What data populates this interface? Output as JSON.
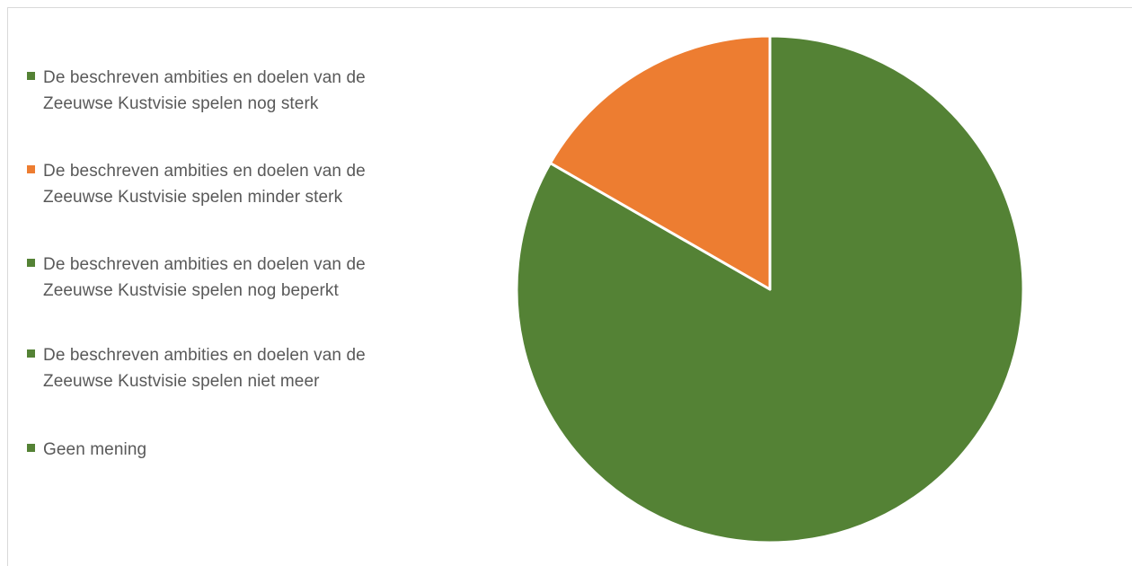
{
  "colors": {
    "green": "#548235",
    "orange": "#ED7D31",
    "legend_text": "#595959",
    "slice_border": "#ffffff"
  },
  "chart_data": {
    "type": "pie",
    "title": "",
    "legend_position": "left",
    "labels": [
      "De beschreven ambities en doelen van de Zeeuwse Kustvisie spelen nog sterk",
      "De beschreven ambities en doelen van de Zeeuwse Kustvisie spelen minder sterk",
      "De beschreven ambities en doelen van de Zeeuwse Kustvisie spelen nog beperkt",
      "De beschreven ambities en doelen van de Zeeuwse Kustvisie spelen niet meer",
      "Geen mening"
    ],
    "values": [
      83.3,
      16.7,
      0,
      0,
      0
    ],
    "colors": [
      "#548235",
      "#ED7D31",
      "#548235",
      "#548235",
      "#548235"
    ]
  }
}
